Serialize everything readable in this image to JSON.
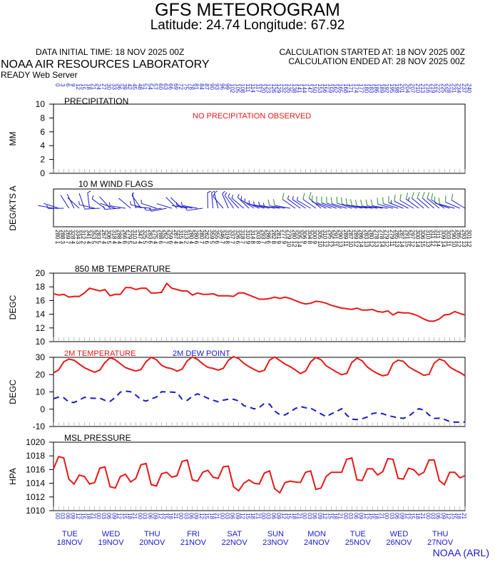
{
  "header": {
    "title": "GFS METEOROGRAM",
    "subtitle": "Latitude: 24.74 Longitude:  67.92",
    "data_initial_time": "DATA INITIAL TIME: 18 NOV 2025 00Z",
    "calc_started": "CALCULATION STARTED AT: 18 NOV 2025 00Z",
    "calc_ended": "CALCULATION ENDED AT: 28 NOV 2025 00Z",
    "lab": "NOAA AIR RESOURCES LABORATORY",
    "server": "READY Web Server",
    "footer": "NOAA (ARL)"
  },
  "colors": {
    "red": "#e61919",
    "blue": "#1a1acc",
    "green": "#2e8b2e",
    "black": "#000000"
  },
  "chart_data": [
    {
      "type": "bar",
      "title": "PRECIPITATION",
      "ylabel": "MM",
      "ylim": [
        0,
        10
      ],
      "yticks": [
        "10",
        "8",
        "6",
        "4",
        "2",
        "0"
      ],
      "note": "NO PRECIPITATION OBSERVED",
      "x_hours": [
        0,
        3,
        6,
        9,
        12,
        15,
        18,
        21,
        24,
        27,
        30,
        33,
        36,
        39,
        42,
        45,
        48,
        51,
        54,
        57,
        60,
        63,
        66,
        69,
        72,
        75,
        78,
        81,
        84,
        87,
        90,
        93,
        96,
        99,
        102,
        105,
        108,
        111,
        114,
        117,
        120,
        123,
        126,
        129,
        132,
        135,
        138,
        141,
        144,
        147,
        150,
        153,
        156,
        159,
        162,
        165,
        168,
        171,
        174,
        177,
        180,
        183,
        186,
        189,
        192,
        195,
        198,
        201,
        204,
        207,
        210,
        213,
        216,
        219,
        222,
        225,
        228,
        231,
        234,
        237,
        240
      ],
      "values": []
    },
    {
      "type": "line",
      "title": "10 M  WIND FLAGS",
      "ylabel": "DEG/KTS  A",
      "directions": [
        280,
        288,
        269,
        328,
        334,
        312,
        341,
        353,
        283,
        267,
        306,
        318,
        288,
        266,
        279,
        310,
        347,
        325,
        283,
        275,
        288,
        262,
        259,
        287,
        315,
        313,
        280,
        280,
        280,
        262,
        359,
        355,
        346,
        319,
        337,
        326,
        318,
        310,
        314,
        303,
        293,
        286,
        282,
        281,
        277,
        279,
        280,
        305,
        306,
        304,
        300,
        305,
        310,
        295,
        291,
        290,
        289,
        287,
        289,
        286,
        283,
        280,
        278,
        278,
        279,
        279,
        285,
        287,
        291,
        297,
        300,
        306,
        310,
        311,
        311,
        309,
        303,
        290,
        285,
        293,
        301
      ],
      "speeds_kts": [
        1,
        3,
        7,
        4,
        3,
        2,
        4,
        5,
        5,
        4,
        5,
        4,
        4,
        6,
        5,
        3,
        4,
        5,
        6,
        4,
        6,
        7,
        6,
        4,
        4,
        2,
        4,
        6,
        7,
        6,
        5,
        6,
        7,
        8,
        7,
        6,
        7,
        9,
        8,
        8,
        7,
        6,
        8,
        9,
        9,
        10,
        12,
        14,
        9,
        8,
        9,
        10,
        12,
        12,
        11,
        13,
        11,
        10,
        12,
        14,
        13,
        12,
        13,
        14,
        12,
        11,
        13,
        14,
        15,
        12,
        14,
        15,
        13,
        12,
        14,
        14,
        11,
        10,
        12,
        13,
        12
      ]
    },
    {
      "type": "line",
      "title": "850 MB  TEMPERATURE",
      "ylabel": "DEGC",
      "ylim": [
        10,
        20
      ],
      "yticks": [
        "20",
        "18",
        "16",
        "14",
        "12",
        "10"
      ],
      "series": [
        {
          "values": [
            17.0,
            16.8,
            16.9,
            16.5,
            16.6,
            16.6,
            17.1,
            17.8,
            17.6,
            17.4,
            17.6,
            16.7,
            16.9,
            16.9,
            17.9,
            17.9,
            17.6,
            17.8,
            17.8,
            17.1,
            17.1,
            17.2,
            18.5,
            17.8,
            17.6,
            17.4,
            17.4,
            16.8,
            17.1,
            16.9,
            16.9,
            17.0,
            16.7,
            16.7,
            16.7,
            16.6,
            17.1,
            17.1,
            16.8,
            16.5,
            16.2,
            16.2,
            16.3,
            16.5,
            16.3,
            16.5,
            16.3,
            16.0,
            15.7,
            15.5,
            15.6,
            15.9,
            15.8,
            15.6,
            15.3,
            15.1,
            14.9,
            14.8,
            14.7,
            14.9,
            14.6,
            14.6,
            14.7,
            14.4,
            14.3,
            14.5,
            13.9,
            14.3,
            14.2,
            14.2,
            14.0,
            13.7,
            13.3,
            13.0,
            13.0,
            13.3,
            13.9,
            14.0,
            14.4,
            14.1,
            13.9
          ]
        }
      ]
    },
    {
      "type": "line",
      "ylabel": "DEGC",
      "ylim": [
        -10,
        30
      ],
      "yticks": [
        "30",
        "20",
        "10",
        "0",
        "-10"
      ],
      "series": [
        {
          "name": "2M TEMPERATURE",
          "values": [
            21.0,
            22.7,
            27.4,
            29.0,
            28.3,
            26.1,
            24.0,
            22.6,
            21.4,
            22.6,
            27.0,
            29.8,
            28.6,
            26.3,
            24.0,
            23.0,
            22.1,
            22.9,
            27.5,
            30.0,
            28.6,
            25.4,
            24.0,
            23.4,
            22.0,
            23.1,
            28.0,
            30.2,
            28.8,
            26.2,
            24.2,
            23.6,
            22.6,
            23.6,
            28.3,
            30.4,
            29.3,
            26.5,
            24.6,
            23.0,
            21.6,
            22.5,
            28.3,
            30.2,
            28.2,
            26.1,
            24.6,
            22.7,
            20.6,
            22.0,
            27.4,
            29.9,
            28.6,
            25.1,
            23.3,
            21.5,
            20.0,
            20.7,
            27.0,
            29.5,
            28.0,
            24.4,
            22.3,
            20.6,
            19.3,
            20.0,
            26.5,
            28.4,
            27.7,
            24.6,
            22.8,
            21.2,
            19.6,
            20.2,
            26.6,
            29.0,
            27.9,
            24.5,
            22.6,
            21.2,
            19.3
          ]
        },
        {
          "name": "2M  DEW POINT",
          "values": [
            6.1,
            7.0,
            6.6,
            4.1,
            3.9,
            5.2,
            6.9,
            6.4,
            6.3,
            6.4,
            5.1,
            4.5,
            6.7,
            9.9,
            10.4,
            10.1,
            8.2,
            5.6,
            4.7,
            6.0,
            7.0,
            10.1,
            10.0,
            9.9,
            9.6,
            5.8,
            5.1,
            7.5,
            8.9,
            7.7,
            6.3,
            5.2,
            4.3,
            5.2,
            5.8,
            5.7,
            4.8,
            2.1,
            1.2,
            0.2,
            1.0,
            3.3,
            2.9,
            -1.1,
            -3.2,
            -3.3,
            -1.6,
            0.4,
            1.6,
            0.8,
            0.6,
            -1.0,
            -2.7,
            -4.3,
            -2.7,
            -1.4,
            0.3,
            -3.4,
            -5.8,
            -6.0,
            -5.5,
            -4.5,
            -2.5,
            -2.1,
            -2.6,
            -3.7,
            -4.3,
            -5.0,
            -5.3,
            -4.2,
            -1.8,
            0.3,
            -0.5,
            -3.3,
            -5.3,
            -5.2,
            -5.9,
            -7.1,
            -7.5,
            -7.5,
            -7.5
          ]
        }
      ]
    },
    {
      "type": "line",
      "title": "MSL PRESSURE",
      "ylabel": "HPA",
      "ylim": [
        1010,
        1020
      ],
      "yticks": [
        "1020",
        "1018",
        "1016",
        "1014",
        "1012",
        "1010"
      ],
      "series": [
        {
          "values": [
            1016.1,
            1017.9,
            1017.7,
            1014.6,
            1013.9,
            1015.2,
            1015.0,
            1013.9,
            1014.1,
            1016.2,
            1016.4,
            1013.5,
            1013.3,
            1015.0,
            1015.3,
            1014.2,
            1014.7,
            1016.7,
            1016.9,
            1013.8,
            1013.6,
            1015.4,
            1015.6,
            1014.9,
            1015.1,
            1017.2,
            1017.4,
            1014.5,
            1014.3,
            1015.6,
            1015.9,
            1014.9,
            1014.7,
            1016.4,
            1016.5,
            1013.5,
            1012.9,
            1014.0,
            1014.5,
            1014.0,
            1013.9,
            1015.5,
            1015.8,
            1013.2,
            1012.6,
            1014.1,
            1014.3,
            1014.2,
            1014.1,
            1015.6,
            1015.8,
            1013.1,
            1013.3,
            1015.0,
            1015.6,
            1015.6,
            1015.6,
            1017.5,
            1017.7,
            1014.5,
            1014.4,
            1016.1,
            1016.1,
            1015.2,
            1015.7,
            1017.6,
            1017.5,
            1014.7,
            1014.6,
            1016.2,
            1016.0,
            1015.2,
            1015.6,
            1017.4,
            1017.4,
            1014.4,
            1013.8,
            1015.6,
            1015.6,
            1014.8,
            1015.1
          ]
        }
      ]
    }
  ],
  "top_axis_hours": [
    "0",
    "3",
    "6",
    "9",
    "12",
    "15",
    "18",
    "21",
    "24",
    "27",
    "30",
    "33",
    "36",
    "39",
    "42",
    "45",
    "48",
    "51",
    "54",
    "57",
    "60",
    "63",
    "66",
    "69",
    "72",
    "75",
    "78",
    "81",
    "84",
    "87",
    "90",
    "93",
    "96",
    "99",
    "102",
    "105",
    "108",
    "111",
    "114",
    "117",
    "120",
    "123",
    "126",
    "129",
    "132",
    "135",
    "138",
    "141",
    "144",
    "147",
    "150",
    "153",
    "156",
    "159",
    "162",
    "165",
    "168",
    "171",
    "174",
    "177",
    "180",
    "183",
    "186",
    "189",
    "192",
    "195",
    "198",
    "201",
    "204",
    "207",
    "210",
    "213",
    "216",
    "219",
    "222",
    "225",
    "228",
    "231",
    "234",
    "237",
    "240"
  ],
  "bottom_axis_hours": [
    "00",
    "03",
    "06",
    "09",
    "12",
    "15",
    "18",
    "21"
  ],
  "days": [
    {
      "dow": "TUE",
      "date": "18NOV"
    },
    {
      "dow": "WED",
      "date": "19NOV"
    },
    {
      "dow": "THU",
      "date": "20NOV"
    },
    {
      "dow": "FRI",
      "date": "21NOV"
    },
    {
      "dow": "SAT",
      "date": "22NOV"
    },
    {
      "dow": "SUN",
      "date": "23NOV"
    },
    {
      "dow": "MON",
      "date": "24NOV"
    },
    {
      "dow": "TUE",
      "date": "25NOV"
    },
    {
      "dow": "WED",
      "date": "26NOV"
    },
    {
      "dow": "THU",
      "date": "27NOV"
    }
  ]
}
